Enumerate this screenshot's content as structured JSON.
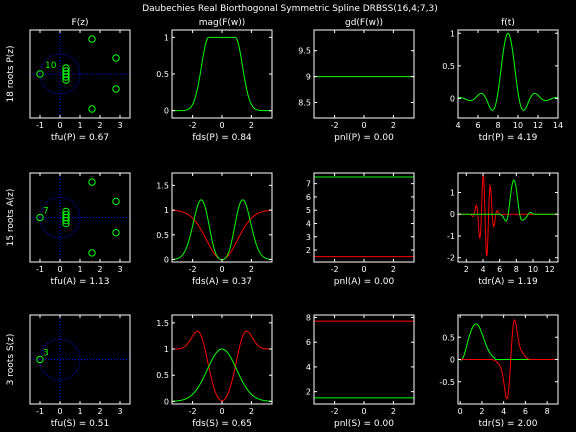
{
  "suptitle": "Daubechies Real Biorthogonal Symmetric Spline DRBSS(16,4;7,3)",
  "colors": {
    "background": "#000000",
    "axes": "#ffffff",
    "green": "#00ff00",
    "red": "#ff0000",
    "grid": "#0000ff"
  },
  "chart_data": [
    {
      "id": "r0c0",
      "type": "scatter",
      "title": "F(z)",
      "ylabel": "18 roots P(z)",
      "xlabel": "tfu(P) = 0.67",
      "xlim": [
        -1.5,
        3.5
      ],
      "ylim": [
        -2.2,
        2.2
      ],
      "xticks": [
        -1,
        0,
        1,
        2,
        3
      ],
      "yticks": [],
      "unit_circle": true,
      "annotation": {
        "text": "10",
        "x": -0.75,
        "y": 0.3
      },
      "series": [
        {
          "color": "green",
          "points": [
            [
              1.6,
              1.75
            ],
            [
              1.6,
              -1.75
            ],
            [
              2.8,
              0.8
            ],
            [
              2.8,
              -0.75
            ],
            [
              0.3,
              0.3
            ],
            [
              0.3,
              0.15
            ],
            [
              0.3,
              0.0
            ],
            [
              0.3,
              -0.15
            ],
            [
              0.3,
              -0.3
            ],
            [
              -1.0,
              0
            ]
          ]
        }
      ]
    },
    {
      "id": "r0c1",
      "type": "line",
      "title": "mag(F(w))",
      "ylabel": "",
      "xlabel": "fds(P) = 0.84",
      "xlim": [
        -3.4,
        3.4
      ],
      "ylim": [
        -0.1,
        1.1
      ],
      "xticks": [
        -2,
        0,
        2
      ],
      "yticks": [
        0,
        0.5,
        1
      ],
      "series": [
        {
          "color": "green",
          "shape": "flat_top"
        }
      ]
    },
    {
      "id": "r0c2",
      "type": "line",
      "title": "gd(F(w))",
      "ylabel": "",
      "xlabel": "pnl(P) = 0.00",
      "xlim": [
        -3.4,
        3.4
      ],
      "ylim": [
        8.2,
        9.9
      ],
      "xticks": [
        -2,
        0,
        2
      ],
      "yticks": [
        8.5,
        9,
        9.5
      ],
      "series": [
        {
          "color": "green",
          "constant": 9
        }
      ]
    },
    {
      "id": "r0c3",
      "type": "line",
      "title": "f(t)",
      "ylabel": "",
      "xlabel": "tdr(P) = 4.19",
      "xlim": [
        4,
        14
      ],
      "ylim": [
        -0.3,
        1.05
      ],
      "xticks": [
        4,
        6,
        8,
        10,
        12,
        14
      ],
      "yticks": [
        0,
        0.5,
        1
      ],
      "series": [
        {
          "color": "green",
          "shape": "sinc",
          "center": 9,
          "scale": 1
        }
      ]
    },
    {
      "id": "r1c0",
      "type": "scatter",
      "title": "",
      "ylabel": "15 roots A(z)",
      "xlabel": "tfu(A) = 1.13",
      "xlim": [
        -1.5,
        3.5
      ],
      "ylim": [
        -2.2,
        2.2
      ],
      "xticks": [
        -1,
        0,
        1,
        2,
        3
      ],
      "yticks": [],
      "unit_circle": true,
      "annotation": {
        "text": "7",
        "x": -0.85,
        "y": 0.2
      },
      "series": [
        {
          "color": "green",
          "points": [
            [
              1.6,
              1.75
            ],
            [
              1.6,
              -1.75
            ],
            [
              2.8,
              0.8
            ],
            [
              2.8,
              -0.75
            ],
            [
              0.3,
              0.3
            ],
            [
              0.3,
              0.15
            ],
            [
              0.3,
              0.0
            ],
            [
              0.3,
              -0.15
            ],
            [
              0.3,
              -0.3
            ],
            [
              -1.0,
              0
            ]
          ]
        }
      ]
    },
    {
      "id": "r1c1",
      "type": "line",
      "title": "",
      "ylabel": "",
      "xlabel": "fds(A) = 0.37",
      "xlim": [
        -3.4,
        3.4
      ],
      "ylim": [
        -0.05,
        1.75
      ],
      "xticks": [
        -2,
        0,
        2
      ],
      "yticks": [
        0,
        0.5,
        1,
        1.5
      ],
      "series": [
        {
          "color": "red",
          "shape": "bowl"
        },
        {
          "color": "green",
          "shape": "double_hump"
        }
      ]
    },
    {
      "id": "r1c2",
      "type": "line",
      "title": "",
      "ylabel": "",
      "xlabel": "pnl(A) = 0.00",
      "xlim": [
        -3.4,
        3.4
      ],
      "ylim": [
        1.1,
        7.8
      ],
      "xticks": [
        -2,
        0,
        2
      ],
      "yticks": [
        2,
        3,
        4,
        5,
        6,
        7
      ],
      "series": [
        {
          "color": "green",
          "constant": 7.5
        },
        {
          "color": "red",
          "constant": 1.5
        }
      ]
    },
    {
      "id": "r1c3",
      "type": "line",
      "title": "",
      "ylabel": "",
      "xlabel": "tdr(A) = 1.19",
      "xlim": [
        1,
        13
      ],
      "ylim": [
        -2.2,
        1.9
      ],
      "xticks": [
        2,
        4,
        6,
        8,
        10,
        12
      ],
      "yticks": [
        -2,
        -1,
        0,
        1
      ],
      "series": [
        {
          "color": "red",
          "shape": "chirp"
        },
        {
          "color": "green",
          "shape": "wavelet_a"
        }
      ]
    },
    {
      "id": "r2c0",
      "type": "scatter",
      "title": "",
      "ylabel": "3 roots S(z)",
      "xlabel": "tfu(S) = 0.51",
      "xlim": [
        -1.5,
        3.5
      ],
      "ylim": [
        -2.2,
        2.2
      ],
      "xticks": [
        -1,
        0,
        1,
        2,
        3
      ],
      "yticks": [],
      "unit_circle": true,
      "annotation": {
        "text": "3",
        "x": -0.85,
        "y": 0.2
      },
      "series": [
        {
          "color": "green",
          "points": [
            [
              -1.0,
              0
            ]
          ]
        }
      ]
    },
    {
      "id": "r2c1",
      "type": "line",
      "title": "",
      "ylabel": "",
      "xlabel": "fds(S) = 0.65",
      "xlim": [
        -3.4,
        3.4
      ],
      "ylim": [
        -0.05,
        1.65
      ],
      "xticks": [
        -2,
        0,
        2
      ],
      "yticks": [
        0,
        0.5,
        1,
        1.5
      ],
      "series": [
        {
          "color": "red",
          "shape": "bowl_high"
        },
        {
          "color": "green",
          "shape": "bell"
        }
      ]
    },
    {
      "id": "r2c2",
      "type": "line",
      "title": "",
      "ylabel": "",
      "xlabel": "pnl(S) = 0.00",
      "xlim": [
        -3.4,
        3.4
      ],
      "ylim": [
        1.0,
        8.2
      ],
      "xticks": [
        -2,
        0,
        2
      ],
      "yticks": [
        2,
        4,
        6,
        8
      ],
      "series": [
        {
          "color": "red",
          "constant": 7.7
        },
        {
          "color": "green",
          "constant": 1.5
        }
      ]
    },
    {
      "id": "r2c3",
      "type": "line",
      "title": "",
      "ylabel": "",
      "xlabel": "tdr(S) = 2.00",
      "xlim": [
        -0.2,
        9
      ],
      "ylim": [
        -1.0,
        1.0
      ],
      "xticks": [
        0,
        2,
        4,
        6,
        8
      ],
      "yticks": [
        -0.5,
        0,
        0.5
      ],
      "series": [
        {
          "color": "green",
          "shape": "scaling"
        },
        {
          "color": "red",
          "shape": "wavelet_s"
        }
      ]
    }
  ]
}
